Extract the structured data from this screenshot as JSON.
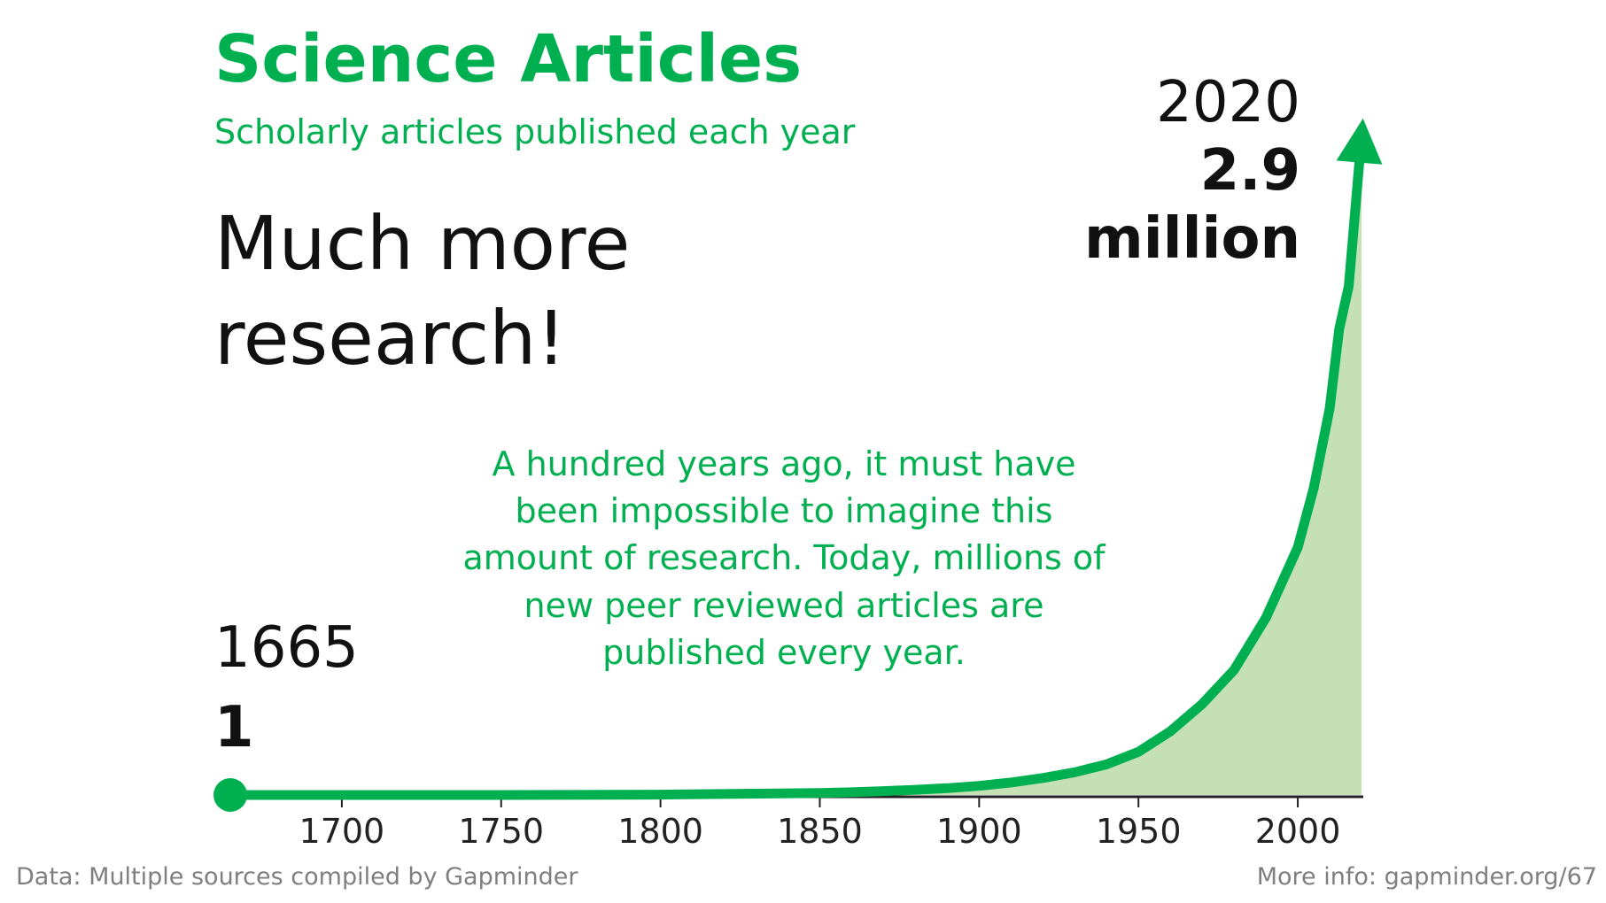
{
  "title": "Science Articles",
  "subtitle": "Scholarly articles published each year",
  "headline": "Much more research!",
  "annotation": "A hundred years ago, it must have been impossible to imagine this amount of research. Today, millions of new peer reviewed articles are published every year.",
  "start_label": {
    "year": "1665",
    "value": "1"
  },
  "end_label": {
    "year": "2020",
    "value": "2.9",
    "unit": "million"
  },
  "footer": {
    "source": "Data: Multiple sources compiled by Gapminder",
    "more_info": "More info: gapminder.org/67"
  },
  "colors": {
    "line": "#00b050",
    "fill": "#c5e0b4",
    "text": "#111111",
    "footer": "#7f7f7f"
  },
  "chart_data": {
    "type": "area",
    "title": "Science Articles",
    "subtitle": "Scholarly articles published each year",
    "xlabel": "",
    "ylabel": "",
    "xlim": [
      1665,
      2020
    ],
    "ylim": [
      0,
      3000000
    ],
    "x_ticks": [
      1700,
      1750,
      1800,
      1850,
      1900,
      1950,
      2000
    ],
    "grid": false,
    "series": [
      {
        "x": [
          1665,
          1700,
          1750,
          1800,
          1850,
          1860,
          1870,
          1880,
          1890,
          1900,
          1910,
          1920,
          1930,
          1940,
          1950,
          1960,
          1970,
          1980,
          1990,
          2000,
          2005,
          2010,
          2013,
          2016,
          2020
        ],
        "values": [
          1,
          10,
          120,
          1400,
          8500,
          12000,
          17000,
          23000,
          30000,
          40000,
          55000,
          75000,
          100000,
          135000,
          190000,
          280000,
          400000,
          550000,
          780000,
          1090000,
          1350000,
          1700000,
          2050000,
          2240000,
          2900000
        ]
      }
    ],
    "annotations": [
      {
        "x": 1665,
        "label": "1665",
        "value": "1"
      },
      {
        "x": 2020,
        "label": "2020",
        "value": "2.9 million"
      }
    ]
  }
}
